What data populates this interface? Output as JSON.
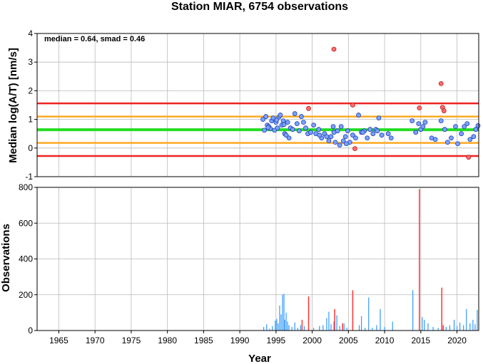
{
  "chart_data": [
    {
      "type": "scatter",
      "title": "Station MIAR, 6754 observations",
      "ylabel": "Median log(A/T) [nm/s]",
      "annotation": "median = 0.64, smad = 0.46",
      "xlim": [
        1962,
        2023
      ],
      "ylim": [
        -1,
        4
      ],
      "yticks": [
        -1,
        0,
        1,
        2,
        3,
        4
      ],
      "grid": true,
      "colors": {
        "normal": "#7aa2ff",
        "outlier": "#ff6b6b",
        "median_line": "#22dd22",
        "inner_band": "#ffaa22",
        "outer_band": "#ee2222"
      },
      "lines": [
        {
          "name": "median",
          "y": 0.64
        },
        {
          "name": "upper_1smad",
          "y": 1.1
        },
        {
          "name": "lower_1smad",
          "y": 0.18
        },
        {
          "name": "upper_2smad",
          "y": 1.56
        },
        {
          "name": "lower_2smad",
          "y": -0.28
        }
      ],
      "points": [
        {
          "x": 1993.2,
          "y": 1.0
        },
        {
          "x": 1993.4,
          "y": 0.62
        },
        {
          "x": 1993.6,
          "y": 1.1
        },
        {
          "x": 1993.8,
          "y": 0.8
        },
        {
          "x": 1994.0,
          "y": 0.75
        },
        {
          "x": 1994.2,
          "y": 0.68
        },
        {
          "x": 1994.4,
          "y": 0.95
        },
        {
          "x": 1994.6,
          "y": 1.05
        },
        {
          "x": 1994.8,
          "y": 0.62
        },
        {
          "x": 1995.0,
          "y": 0.9
        },
        {
          "x": 1995.2,
          "y": 0.7
        },
        {
          "x": 1995.4,
          "y": 1.08
        },
        {
          "x": 1995.6,
          "y": 1.15
        },
        {
          "x": 1995.8,
          "y": 0.8
        },
        {
          "x": 1996.0,
          "y": 0.95
        },
        {
          "x": 1996.2,
          "y": 0.5
        },
        {
          "x": 1996.4,
          "y": 0.45
        },
        {
          "x": 1996.6,
          "y": 0.9
        },
        {
          "x": 1996.8,
          "y": 0.35
        },
        {
          "x": 1997.0,
          "y": 0.7
        },
        {
          "x": 1997.3,
          "y": 0.65
        },
        {
          "x": 1997.6,
          "y": 1.2
        },
        {
          "x": 1997.9,
          "y": 0.85
        },
        {
          "x": 1998.2,
          "y": 0.6
        },
        {
          "x": 1998.5,
          "y": 1.1
        },
        {
          "x": 1998.8,
          "y": 0.9
        },
        {
          "x": 1999.1,
          "y": 0.7
        },
        {
          "x": 1999.4,
          "y": 0.5
        },
        {
          "x": 1999.8,
          "y": 0.55
        },
        {
          "x": 2000.2,
          "y": 0.8
        },
        {
          "x": 2000.5,
          "y": 0.5
        },
        {
          "x": 2000.9,
          "y": 0.65
        },
        {
          "x": 2001.3,
          "y": 0.35
        },
        {
          "x": 2001.7,
          "y": 0.5
        },
        {
          "x": 2002.0,
          "y": 0.4
        },
        {
          "x": 2002.3,
          "y": 0.25
        },
        {
          "x": 2002.6,
          "y": 0.4
        },
        {
          "x": 2002.9,
          "y": 0.75
        },
        {
          "x": 2003.2,
          "y": 0.2
        },
        {
          "x": 2003.5,
          "y": 0.6
        },
        {
          "x": 2003.8,
          "y": 0.1
        },
        {
          "x": 2004.0,
          "y": 0.75
        },
        {
          "x": 2004.3,
          "y": 0.25
        },
        {
          "x": 2004.6,
          "y": 0.4
        },
        {
          "x": 2004.9,
          "y": 0.6
        },
        {
          "x": 2005.2,
          "y": 0.2
        },
        {
          "x": 2005.6,
          "y": 0.45
        },
        {
          "x": 2006.0,
          "y": 0.35
        },
        {
          "x": 2006.4,
          "y": 1.15
        },
        {
          "x": 2006.8,
          "y": 0.55
        },
        {
          "x": 2007.2,
          "y": 0.6
        },
        {
          "x": 2007.6,
          "y": 0.35
        },
        {
          "x": 2008.0,
          "y": 0.65
        },
        {
          "x": 2008.4,
          "y": 0.5
        },
        {
          "x": 2008.8,
          "y": 0.65
        },
        {
          "x": 2009.2,
          "y": 1.05
        },
        {
          "x": 2009.6,
          "y": 0.45
        },
        {
          "x": 2010.5,
          "y": 0.5
        },
        {
          "x": 2010.9,
          "y": 0.35
        },
        {
          "x": 2013.8,
          "y": 0.95
        },
        {
          "x": 2014.3,
          "y": 0.55
        },
        {
          "x": 2014.7,
          "y": 0.85
        },
        {
          "x": 2015.0,
          "y": 0.65
        },
        {
          "x": 2015.3,
          "y": 0.75
        },
        {
          "x": 2015.6,
          "y": 0.9
        },
        {
          "x": 2016.5,
          "y": 0.35
        },
        {
          "x": 2017.0,
          "y": 0.3
        },
        {
          "x": 2017.8,
          "y": 0.95
        },
        {
          "x": 2018.3,
          "y": 0.65
        },
        {
          "x": 2018.7,
          "y": 0.2
        },
        {
          "x": 2019.2,
          "y": 0.35
        },
        {
          "x": 2019.8,
          "y": 0.75
        },
        {
          "x": 2020.1,
          "y": 0.15
        },
        {
          "x": 2020.6,
          "y": 0.5
        },
        {
          "x": 2021.0,
          "y": 0.75
        },
        {
          "x": 2021.4,
          "y": 0.85
        },
        {
          "x": 2021.8,
          "y": 0.3
        },
        {
          "x": 2022.3,
          "y": 0.4
        },
        {
          "x": 2022.6,
          "y": 0.65
        },
        {
          "x": 2022.9,
          "y": 0.78
        },
        {
          "x": 1993.9,
          "y": 0.72
        },
        {
          "x": 1995.1,
          "y": 0.98
        },
        {
          "x": 1996.1,
          "y": 0.82
        },
        {
          "x": 2001.0,
          "y": 0.45
        },
        {
          "x": 2003.0,
          "y": 0.55
        },
        {
          "x": 2004.7,
          "y": 0.15
        },
        {
          "x": 2007.0,
          "y": 0.55
        },
        {
          "x": 2009.0,
          "y": 0.6
        }
      ],
      "outliers": [
        {
          "x": 2003.0,
          "y": 3.45
        },
        {
          "x": 1999.5,
          "y": 1.38
        },
        {
          "x": 2005.6,
          "y": 1.5
        },
        {
          "x": 2005.9,
          "y": -0.02
        },
        {
          "x": 2014.8,
          "y": 1.4
        },
        {
          "x": 2017.8,
          "y": 2.25
        },
        {
          "x": 2018.0,
          "y": 1.42
        },
        {
          "x": 2018.2,
          "y": 1.3
        },
        {
          "x": 2021.6,
          "y": -0.32
        }
      ]
    },
    {
      "type": "bar",
      "xlabel": "Year",
      "ylabel": "Observations",
      "xlim": [
        1962,
        2023
      ],
      "ylim": [
        0,
        800
      ],
      "yticks": [
        0,
        200,
        400,
        600,
        800
      ],
      "xticks": [
        1965,
        1970,
        1975,
        1980,
        1985,
        1990,
        1995,
        2000,
        2005,
        2010,
        2015,
        2020
      ],
      "grid": true,
      "colors": {
        "normal": "#3399ff",
        "outlier": "#ff3333"
      },
      "bars": [
        {
          "x": 1993.3,
          "y": 20
        },
        {
          "x": 1993.7,
          "y": 35
        },
        {
          "x": 1994.1,
          "y": 10
        },
        {
          "x": 1994.5,
          "y": 25
        },
        {
          "x": 1994.9,
          "y": 55
        },
        {
          "x": 1995.1,
          "y": 65
        },
        {
          "x": 1995.3,
          "y": 40
        },
        {
          "x": 1995.5,
          "y": 140
        },
        {
          "x": 1995.7,
          "y": 90
        },
        {
          "x": 1995.9,
          "y": 200
        },
        {
          "x": 1996.1,
          "y": 205
        },
        {
          "x": 1996.2,
          "y": 60
        },
        {
          "x": 1996.4,
          "y": 100
        },
        {
          "x": 1996.6,
          "y": 50
        },
        {
          "x": 1996.8,
          "y": 30
        },
        {
          "x": 1997.2,
          "y": 20
        },
        {
          "x": 1997.6,
          "y": 45
        },
        {
          "x": 1998.0,
          "y": 15
        },
        {
          "x": 1998.4,
          "y": 30
        },
        {
          "x": 1998.9,
          "y": 25
        },
        {
          "x": 2000.2,
          "y": 15
        },
        {
          "x": 2001.0,
          "y": 25
        },
        {
          "x": 2001.5,
          "y": 30
        },
        {
          "x": 2002.0,
          "y": 70
        },
        {
          "x": 2002.3,
          "y": 105
        },
        {
          "x": 2002.6,
          "y": 35
        },
        {
          "x": 2003.0,
          "y": 50
        },
        {
          "x": 2003.4,
          "y": 85
        },
        {
          "x": 2003.8,
          "y": 25
        },
        {
          "x": 2004.4,
          "y": 40
        },
        {
          "x": 2004.8,
          "y": 15
        },
        {
          "x": 2006.5,
          "y": 30
        },
        {
          "x": 2006.8,
          "y": 80
        },
        {
          "x": 2007.3,
          "y": 15
        },
        {
          "x": 2007.8,
          "y": 185
        },
        {
          "x": 2008.3,
          "y": 15
        },
        {
          "x": 2008.9,
          "y": 30
        },
        {
          "x": 2009.4,
          "y": 120
        },
        {
          "x": 2010.0,
          "y": 20
        },
        {
          "x": 2011.1,
          "y": 50
        },
        {
          "x": 2013.9,
          "y": 225
        },
        {
          "x": 2015.2,
          "y": 75
        },
        {
          "x": 2015.5,
          "y": 60
        },
        {
          "x": 2016.0,
          "y": 40
        },
        {
          "x": 2016.7,
          "y": 20
        },
        {
          "x": 2017.4,
          "y": 15
        },
        {
          "x": 2018.5,
          "y": 20
        },
        {
          "x": 2019.0,
          "y": 30
        },
        {
          "x": 2019.6,
          "y": 60
        },
        {
          "x": 2020.0,
          "y": 25
        },
        {
          "x": 2020.4,
          "y": 45
        },
        {
          "x": 2020.9,
          "y": 30
        },
        {
          "x": 2021.3,
          "y": 120
        },
        {
          "x": 2021.8,
          "y": 40
        },
        {
          "x": 2022.2,
          "y": 60
        },
        {
          "x": 2022.5,
          "y": 35
        },
        {
          "x": 2022.8,
          "y": 115
        }
      ],
      "outlier_bars": [
        {
          "x": 1998.6,
          "y": 60
        },
        {
          "x": 1999.5,
          "y": 190
        },
        {
          "x": 2003.1,
          "y": 120
        },
        {
          "x": 2004.2,
          "y": 40
        },
        {
          "x": 2005.6,
          "y": 225
        },
        {
          "x": 2014.8,
          "y": 790
        },
        {
          "x": 2017.9,
          "y": 240
        },
        {
          "x": 2018.1,
          "y": 30
        }
      ]
    }
  ]
}
